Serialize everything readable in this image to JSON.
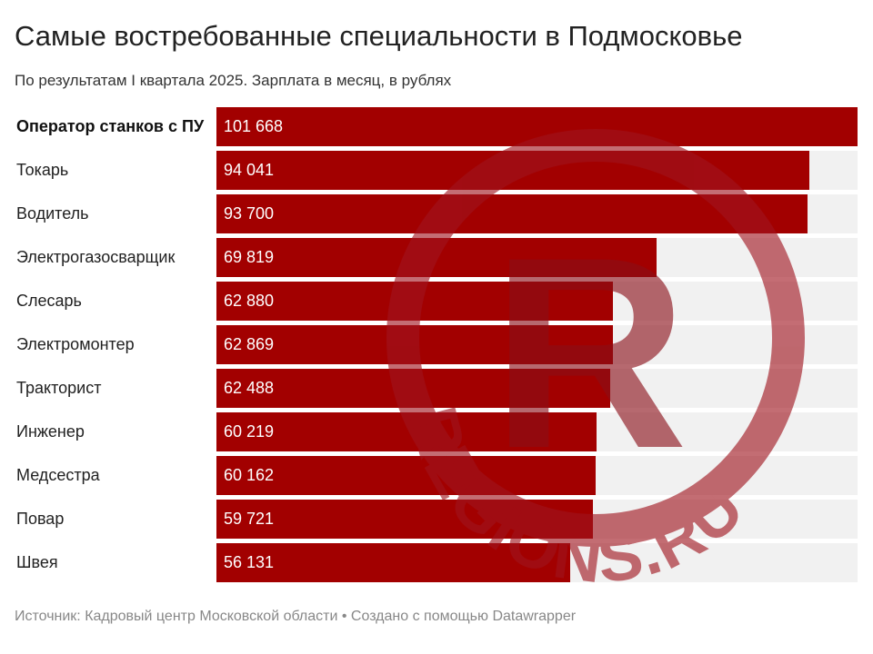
{
  "header": {
    "title": "Самые востребованные специальности в Подмосковье",
    "subtitle": "По результатам I квартала 2025. Зарплата в месяц, в рублях"
  },
  "chart_data": {
    "type": "bar",
    "orientation": "horizontal",
    "categories": [
      "Оператор станков с ПУ",
      "Токарь",
      "Водитель",
      "Электрогазосварщик",
      "Слесарь",
      "Электромонтер",
      "Тракторист",
      "Инженер",
      "Медсестра",
      "Повар",
      "Швея"
    ],
    "values": [
      101668,
      94041,
      93700,
      69819,
      62880,
      62869,
      62488,
      60219,
      60162,
      59721,
      56131
    ],
    "value_labels": [
      "101 668",
      "94 041",
      "93 700",
      "69 819",
      "62 880",
      "62 869",
      "62 488",
      "60 219",
      "60 162",
      "59 721",
      "56 131"
    ],
    "highlighted": "Оператор станков с ПУ",
    "xlim": [
      0,
      101668
    ],
    "grid": false,
    "bar_color": "#a20000",
    "track_color": "#f1f1f1"
  },
  "footer": {
    "text": "Источник: Кадровый центр Московской области • Создано с помощью Datawrapper"
  },
  "watermark": {
    "logo_text": "REGIONS.RU",
    "letter": "R",
    "color": "#a0141e"
  }
}
